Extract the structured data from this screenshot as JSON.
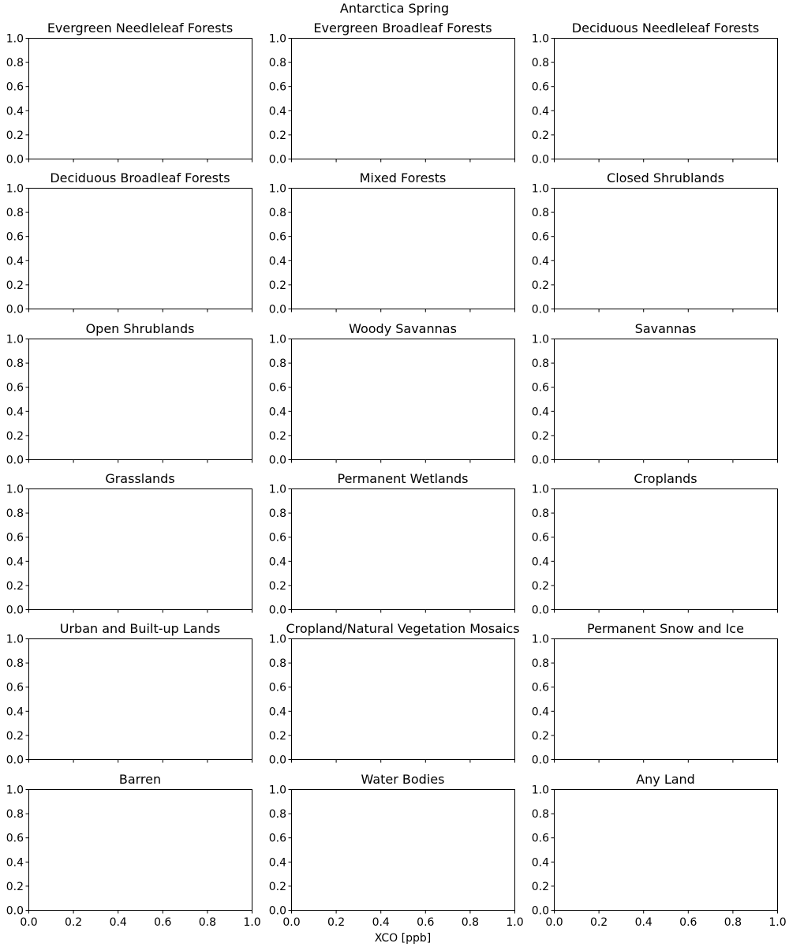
{
  "chart_data": {
    "type": "line",
    "title": "Antarctica Spring",
    "xlabel": "XCO [ppb]",
    "ylabel": "",
    "xlim": [
      0.0,
      1.0
    ],
    "ylim": [
      0.0,
      1.0
    ],
    "grid": false,
    "x_ticks": [
      "0.0",
      "0.2",
      "0.4",
      "0.6",
      "0.8",
      "1.0"
    ],
    "y_ticks": [
      "0.0",
      "0.2",
      "0.4",
      "0.6",
      "0.8",
      "1.0"
    ],
    "subplots": [
      {
        "title": "Evergreen Needleleaf Forests",
        "series": []
      },
      {
        "title": "Evergreen Broadleaf Forests",
        "series": []
      },
      {
        "title": "Deciduous Needleleaf Forests",
        "series": []
      },
      {
        "title": "Deciduous Broadleaf Forests",
        "series": []
      },
      {
        "title": "Mixed Forests",
        "series": []
      },
      {
        "title": "Closed Shrublands",
        "series": []
      },
      {
        "title": "Open Shrublands",
        "series": []
      },
      {
        "title": "Woody Savannas",
        "series": []
      },
      {
        "title": "Savannas",
        "series": []
      },
      {
        "title": "Grasslands",
        "series": []
      },
      {
        "title": "Permanent Wetlands",
        "series": []
      },
      {
        "title": "Croplands",
        "series": []
      },
      {
        "title": "Urban and Built-up Lands",
        "series": []
      },
      {
        "title": "Cropland/Natural Vegetation Mosaics",
        "series": []
      },
      {
        "title": "Permanent Snow and Ice",
        "series": []
      },
      {
        "title": "Barren",
        "series": []
      },
      {
        "title": "Water Bodies",
        "series": []
      },
      {
        "title": "Any Land",
        "series": []
      }
    ]
  }
}
